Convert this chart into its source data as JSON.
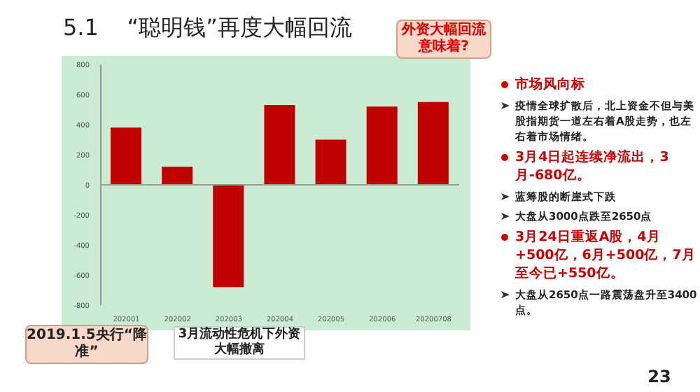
{
  "chart_data": {
    "type": "bar",
    "title": "5.1    “聪明钱”再度大幅回流",
    "categories": [
      "202001",
      "202002",
      "202003",
      "202004",
      "202005",
      "202006",
      "20200708"
    ],
    "values": [
      380,
      120,
      -680,
      530,
      300,
      520,
      550
    ],
    "color": "#c00000",
    "ylim": [
      -800,
      800
    ],
    "yticks": [
      -800,
      -600,
      -400,
      -200,
      0,
      200,
      400,
      600,
      800
    ],
    "annotations": [
      "外资大幅回流意味着?",
      "2019.1.5央行“降准”",
      "3月流动性危机下外资大幅撤离",
      "23",
      "市场风向标",
      "疫情全球扩散后，北上资金不但与美股指期货一道左右着A股走势，也左右着市场情绪。",
      "3月4日起连续净流出，3月-680亿。",
      "蓝筹股的断崖式下跌",
      "大盘从3000点跌至2650点",
      "3月24日重返A股，4月+500亿，6月+500亿，7月至今已+550亿。",
      "大盘从2650点一路震荡盘升至3400点。"
    ]
  }
}
